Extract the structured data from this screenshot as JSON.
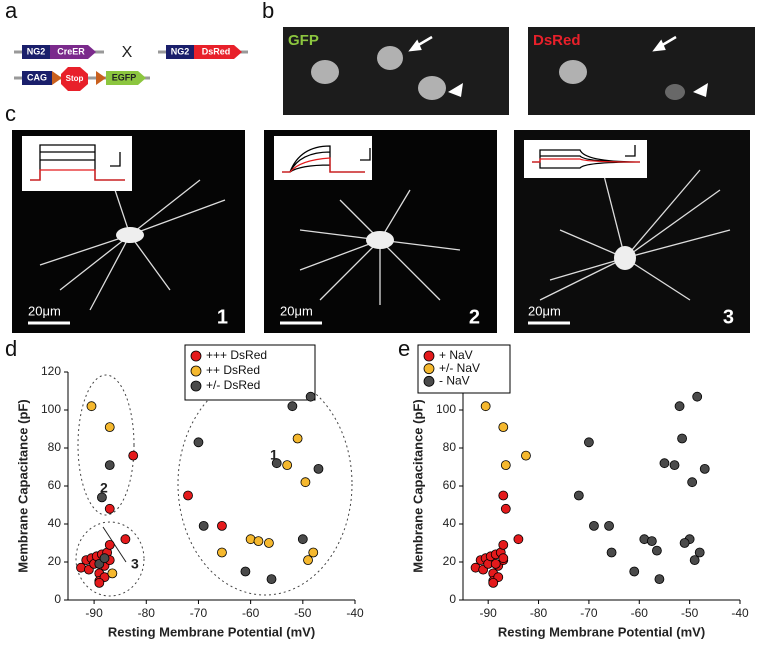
{
  "panels": {
    "letters": [
      "a",
      "b",
      "c",
      "d",
      "e"
    ],
    "a": {
      "row1": [
        "NG2",
        "CreER"
      ],
      "cross": "X",
      "row1b": [
        "NG2",
        "DsRed"
      ],
      "row2": [
        "CAG",
        "Stop",
        "EGFP"
      ]
    },
    "b": {
      "left": "GFP",
      "right": "DsRed"
    },
    "c": {
      "scale": [
        "20μm",
        "20μm",
        "20μm"
      ],
      "numbers": [
        "1",
        "2",
        "3"
      ]
    }
  },
  "chart_data": [
    {
      "type": "scatter",
      "xlabel": "Resting Membrane Potential (mV)",
      "ylabel": "Membrane Capacitance (pF)",
      "xlim": [
        -95,
        -40
      ],
      "ylim": [
        0,
        120
      ],
      "xticks": [
        -90,
        -80,
        -70,
        -60,
        -50,
        -40
      ],
      "yticks": [
        0,
        20,
        40,
        60,
        80,
        100,
        120
      ],
      "annotations": [
        "1",
        "2",
        "3"
      ],
      "series": [
        {
          "name": "+++ DsRed",
          "color": "#e41a1c",
          "x": [
            -92.5,
            -91.5,
            -91,
            -90.5,
            -90,
            -89.5,
            -89,
            -89,
            -88.5,
            -88,
            -87.5,
            -87,
            -87,
            -88,
            -89,
            -84,
            -82.5,
            -87,
            -72,
            -65.5
          ],
          "values": [
            17,
            21,
            16,
            22,
            19,
            23,
            14,
            10,
            24,
            18,
            25,
            29,
            21,
            12,
            9,
            32,
            76,
            48,
            55,
            39
          ]
        },
        {
          "name": "++ DsRed",
          "color": "#f5b82e",
          "x": [
            -90.5,
            -87,
            -86.5,
            -65.5,
            -60,
            -58.5,
            -56.5,
            -53,
            -51,
            -49.5,
            -49,
            -48
          ],
          "values": [
            102,
            91,
            14,
            25,
            32,
            31,
            30,
            71,
            85,
            62,
            21,
            25
          ]
        },
        {
          "name": "+/- DsRed",
          "color": "#4a4a4a",
          "x": [
            -87,
            -88.5,
            -89,
            -70,
            -69,
            -61,
            -56,
            -55,
            -52,
            -48.5,
            -47,
            -50,
            -88
          ],
          "values": [
            71,
            54,
            19,
            83,
            39,
            15,
            11,
            72,
            102,
            107,
            69,
            32,
            22
          ]
        }
      ]
    },
    {
      "type": "scatter",
      "xlabel": "Resting Membrane Potential (mV)",
      "ylabel": "Membrane Capacitance (pF)",
      "xlim": [
        -95,
        -40
      ],
      "ylim": [
        0,
        120
      ],
      "xticks": [
        -90,
        -80,
        -70,
        -60,
        -50,
        -40
      ],
      "yticks": [
        0,
        20,
        40,
        60,
        80,
        100,
        120
      ],
      "series": [
        {
          "name": "+ NaV",
          "color": "#e41a1c",
          "x": [
            -92.5,
            -91.5,
            -91,
            -90.5,
            -90,
            -89.5,
            -89,
            -89,
            -88.5,
            -88,
            -87.5,
            -87,
            -87,
            -88,
            -89,
            -84,
            -87,
            -86.5,
            -88.5,
            -87
          ],
          "values": [
            17,
            21,
            16,
            22,
            19,
            23,
            14,
            10,
            24,
            18,
            25,
            29,
            21,
            12,
            9,
            32,
            55,
            48,
            19,
            22
          ]
        },
        {
          "name": "+/- NaV",
          "color": "#f5b82e",
          "x": [
            -90.5,
            -87,
            -86.5,
            -82.5
          ],
          "values": [
            102,
            91,
            71,
            76
          ]
        },
        {
          "name": "- NaV",
          "color": "#4a4a4a",
          "x": [
            -72,
            -70,
            -69,
            -66,
            -65.5,
            -61,
            -59,
            -57.5,
            -56.5,
            -56,
            -55,
            -53,
            -52,
            -51.5,
            -49.5,
            -49,
            -48.5,
            -48,
            -47,
            -50,
            -51
          ],
          "values": [
            55,
            83,
            39,
            39,
            25,
            15,
            32,
            31,
            26,
            11,
            72,
            71,
            102,
            85,
            62,
            21,
            107,
            25,
            69,
            32,
            30
          ]
        }
      ]
    }
  ]
}
